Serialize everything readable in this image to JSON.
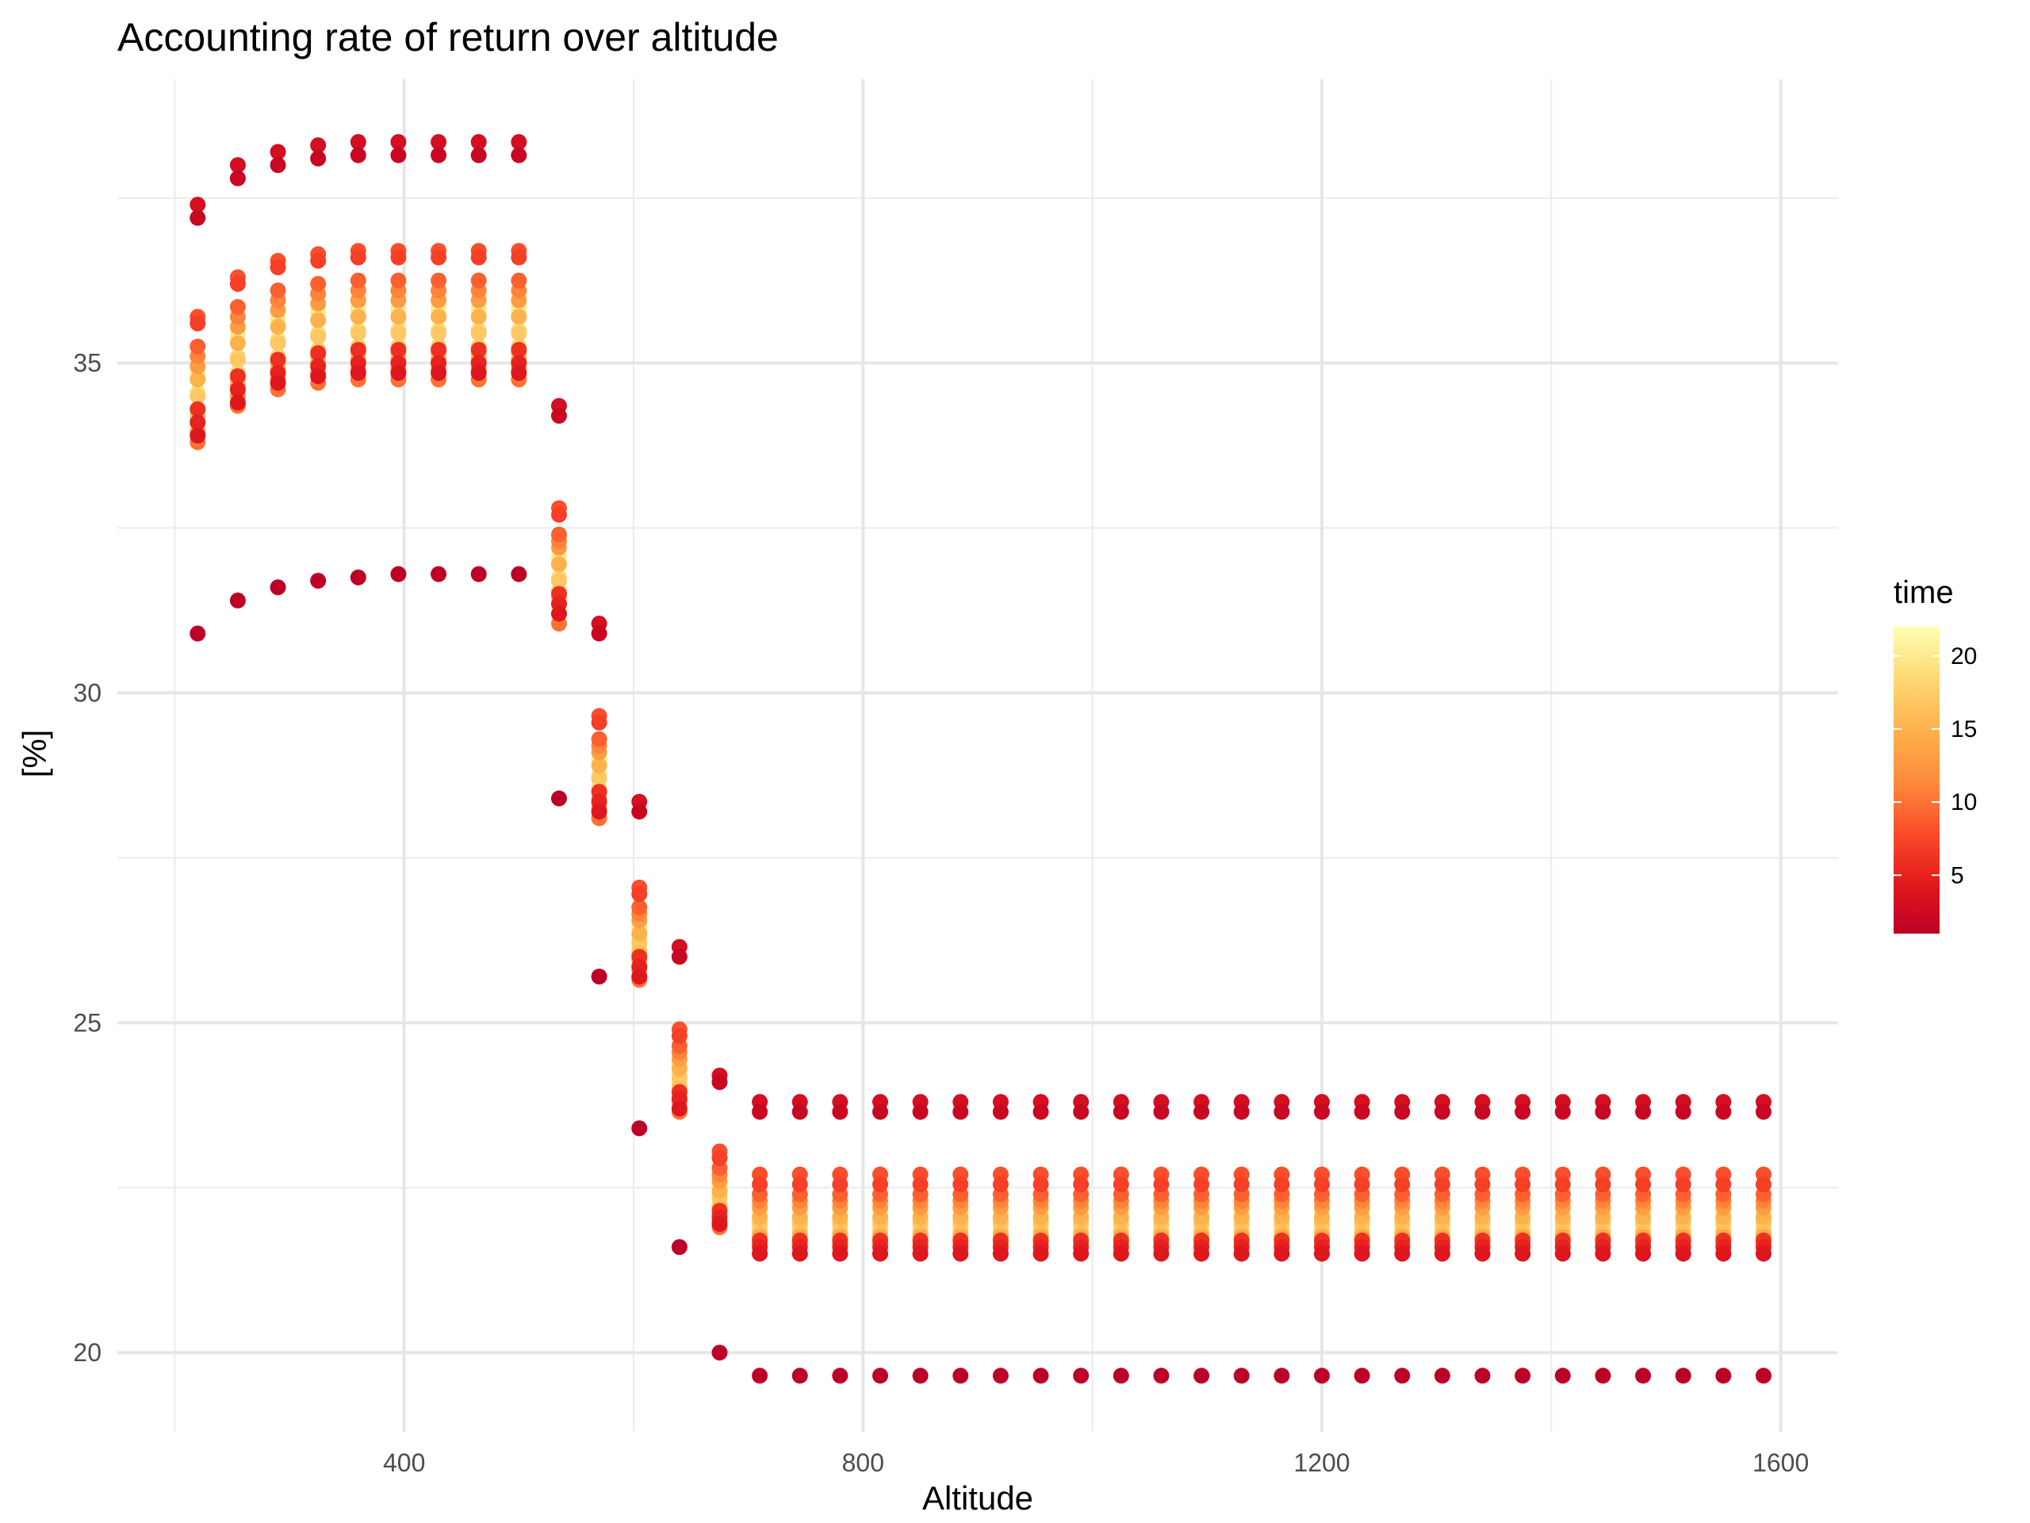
{
  "chart_data": {
    "type": "scatter",
    "title": "Accounting rate of return over altitude",
    "xlabel": "Altitude",
    "ylabel": "[%]",
    "xlim": [
      150,
      1650
    ],
    "ylim": [
      18.8,
      39.3
    ],
    "x_ticks": [
      400,
      800,
      1200,
      1600
    ],
    "x_tick_labels": [
      "400",
      "800",
      "1200",
      "1600"
    ],
    "y_ticks": [
      20,
      25,
      30,
      35
    ],
    "y_tick_labels": [
      "20",
      "25",
      "30",
      "35"
    ],
    "grid": true,
    "legend": {
      "title": "time",
      "placement": "right",
      "type": "colorbar",
      "range": [
        1,
        22
      ],
      "ticks": [
        5,
        10,
        15,
        20
      ],
      "tick_labels": [
        "5",
        "10",
        "15",
        "20"
      ],
      "colors": [
        "#bd0026",
        "#e31a1c",
        "#fc4e2a",
        "#fd8d3c",
        "#feb24c",
        "#fed976",
        "#ffffb2"
      ]
    },
    "color_by": "time",
    "altitudes": [
      220,
      255,
      290,
      325,
      360,
      395,
      430,
      465,
      500,
      535,
      570,
      605,
      640,
      675,
      710,
      745,
      780,
      815,
      850,
      885,
      920,
      955,
      990,
      1025,
      1060,
      1095,
      1130,
      1165,
      1200,
      1235,
      1270,
      1305,
      1340,
      1375,
      1410,
      1445,
      1480,
      1515,
      1550,
      1585
    ],
    "series_by_time": [
      {
        "time": 1,
        "values": [
          30.9,
          31.4,
          31.6,
          31.7,
          31.75,
          31.8,
          31.8,
          31.8,
          31.8,
          28.4,
          25.7,
          23.4,
          21.6,
          20.0,
          19.65,
          19.65,
          19.65,
          19.65,
          19.65,
          19.65,
          19.65,
          19.65,
          19.65,
          19.65,
          19.65,
          19.65,
          19.65,
          19.65,
          19.65,
          19.65,
          19.65,
          19.65,
          19.65,
          19.65,
          19.65,
          19.65,
          19.65,
          19.65,
          19.65,
          19.65
        ]
      },
      {
        "time": 2,
        "values": [
          37.2,
          37.8,
          38.0,
          38.1,
          38.15,
          38.15,
          38.15,
          38.15,
          38.15,
          34.2,
          30.9,
          28.2,
          26.0,
          24.1,
          23.65,
          23.65,
          23.65,
          23.65,
          23.65,
          23.65,
          23.65,
          23.65,
          23.65,
          23.65,
          23.65,
          23.65,
          23.65,
          23.65,
          23.65,
          23.65,
          23.65,
          23.65,
          23.65,
          23.65,
          23.65,
          23.65,
          23.65,
          23.65,
          23.65,
          23.65
        ]
      },
      {
        "time": 3,
        "values": [
          37.4,
          38.0,
          38.2,
          38.3,
          38.35,
          38.35,
          38.35,
          38.35,
          38.35,
          34.35,
          31.05,
          28.35,
          26.15,
          24.2,
          23.8,
          23.8,
          23.8,
          23.8,
          23.8,
          23.8,
          23.8,
          23.8,
          23.8,
          23.8,
          23.8,
          23.8,
          23.8,
          23.8,
          23.8,
          23.8,
          23.8,
          23.8,
          23.8,
          23.8,
          23.8,
          23.8,
          23.8,
          23.8,
          23.8,
          23.8
        ]
      },
      {
        "time": 4,
        "values": [
          33.9,
          34.4,
          34.7,
          34.8,
          34.85,
          34.85,
          34.85,
          34.85,
          34.85,
          31.2,
          28.2,
          25.7,
          23.7,
          21.95,
          21.5,
          21.5,
          21.5,
          21.5,
          21.5,
          21.5,
          21.5,
          21.5,
          21.5,
          21.5,
          21.5,
          21.5,
          21.5,
          21.5,
          21.5,
          21.5,
          21.5,
          21.5,
          21.5,
          21.5,
          21.5,
          21.5,
          21.5,
          21.5,
          21.5,
          21.5
        ]
      },
      {
        "time": 5,
        "values": [
          34.1,
          34.6,
          34.85,
          34.95,
          35.0,
          35.0,
          35.0,
          35.0,
          35.0,
          31.35,
          28.35,
          25.85,
          23.85,
          22.05,
          21.6,
          21.6,
          21.6,
          21.6,
          21.6,
          21.6,
          21.6,
          21.6,
          21.6,
          21.6,
          21.6,
          21.6,
          21.6,
          21.6,
          21.6,
          21.6,
          21.6,
          21.6,
          21.6,
          21.6,
          21.6,
          21.6,
          21.6,
          21.6,
          21.6,
          21.6
        ]
      },
      {
        "time": 6,
        "values": [
          34.3,
          34.8,
          35.05,
          35.15,
          35.2,
          35.2,
          35.2,
          35.2,
          35.2,
          31.5,
          28.5,
          26.0,
          23.95,
          22.15,
          21.7,
          21.7,
          21.7,
          21.7,
          21.7,
          21.7,
          21.7,
          21.7,
          21.7,
          21.7,
          21.7,
          21.7,
          21.7,
          21.7,
          21.7,
          21.7,
          21.7,
          21.7,
          21.7,
          21.7,
          21.7,
          21.7,
          21.7,
          21.7,
          21.7,
          21.7
        ]
      },
      {
        "time": 7,
        "values": [
          35.6,
          36.2,
          36.45,
          36.55,
          36.6,
          36.6,
          36.6,
          36.6,
          36.6,
          32.7,
          29.55,
          26.95,
          24.8,
          22.95,
          22.55,
          22.55,
          22.55,
          22.55,
          22.55,
          22.55,
          22.55,
          22.55,
          22.55,
          22.55,
          22.55,
          22.55,
          22.55,
          22.55,
          22.55,
          22.55,
          22.55,
          22.55,
          22.55,
          22.55,
          22.55,
          22.55,
          22.55,
          22.55,
          22.55,
          22.55
        ]
      },
      {
        "time": 8,
        "values": [
          35.7,
          36.3,
          36.55,
          36.65,
          36.7,
          36.7,
          36.7,
          36.7,
          36.7,
          32.8,
          29.65,
          27.05,
          24.9,
          23.05,
          22.7,
          22.7,
          22.7,
          22.7,
          22.7,
          22.7,
          22.7,
          22.7,
          22.7,
          22.7,
          22.7,
          22.7,
          22.7,
          22.7,
          22.7,
          22.7,
          22.7,
          22.7,
          22.7,
          22.7,
          22.7,
          22.7,
          22.7,
          22.7,
          22.7,
          22.7
        ]
      },
      {
        "time": 9,
        "values": [
          35.25,
          35.85,
          36.1,
          36.2,
          36.25,
          36.25,
          36.25,
          36.25,
          36.25,
          32.4,
          29.3,
          26.75,
          24.65,
          22.8,
          22.4,
          22.4,
          22.4,
          22.4,
          22.4,
          22.4,
          22.4,
          22.4,
          22.4,
          22.4,
          22.4,
          22.4,
          22.4,
          22.4,
          22.4,
          22.4,
          22.4,
          22.4,
          22.4,
          22.4,
          22.4,
          22.4,
          22.4,
          22.4,
          22.4,
          22.4
        ]
      },
      {
        "time": 10,
        "values": [
          33.8,
          34.35,
          34.6,
          34.7,
          34.75,
          34.75,
          34.75,
          34.75,
          34.75,
          31.05,
          28.1,
          25.65,
          23.65,
          21.9,
          21.5,
          21.5,
          21.5,
          21.5,
          21.5,
          21.5,
          21.5,
          21.5,
          21.5,
          21.5,
          21.5,
          21.5,
          21.5,
          21.5,
          21.5,
          21.5,
          21.5,
          21.5,
          21.5,
          21.5,
          21.5,
          21.5,
          21.5,
          21.5,
          21.5,
          21.5
        ]
      },
      {
        "time": 11,
        "values": [
          35.1,
          35.7,
          35.95,
          36.05,
          36.1,
          36.1,
          36.1,
          36.1,
          36.1,
          32.3,
          29.2,
          26.65,
          24.55,
          22.7,
          22.3,
          22.3,
          22.3,
          22.3,
          22.3,
          22.3,
          22.3,
          22.3,
          22.3,
          22.3,
          22.3,
          22.3,
          22.3,
          22.3,
          22.3,
          22.3,
          22.3,
          22.3,
          22.3,
          22.3,
          22.3,
          22.3,
          22.3,
          22.3,
          22.3,
          22.3
        ]
      },
      {
        "time": 12,
        "values": [
          33.95,
          34.5,
          34.75,
          34.85,
          34.9,
          34.9,
          34.9,
          34.9,
          34.9,
          31.2,
          28.25,
          25.8,
          23.8,
          22.0,
          21.65,
          21.65,
          21.65,
          21.65,
          21.65,
          21.65,
          21.65,
          21.65,
          21.65,
          21.65,
          21.65,
          21.65,
          21.65,
          21.65,
          21.65,
          21.65,
          21.65,
          21.65,
          21.65,
          21.65,
          21.65,
          21.65,
          21.65,
          21.65,
          21.65,
          21.65
        ]
      },
      {
        "time": 13,
        "values": [
          34.95,
          35.55,
          35.8,
          35.9,
          35.95,
          35.95,
          35.95,
          35.95,
          35.95,
          32.2,
          29.1,
          26.55,
          24.45,
          22.6,
          22.2,
          22.2,
          22.2,
          22.2,
          22.2,
          22.2,
          22.2,
          22.2,
          22.2,
          22.2,
          22.2,
          22.2,
          22.2,
          22.2,
          22.2,
          22.2,
          22.2,
          22.2,
          22.2,
          22.2,
          22.2,
          22.2,
          22.2,
          22.2,
          22.2,
          22.2
        ]
      },
      {
        "time": 14,
        "values": [
          34.1,
          34.65,
          34.9,
          35.0,
          35.05,
          35.05,
          35.05,
          35.05,
          35.05,
          31.35,
          28.4,
          25.95,
          23.95,
          22.1,
          21.75,
          21.75,
          21.75,
          21.75,
          21.75,
          21.75,
          21.75,
          21.75,
          21.75,
          21.75,
          21.75,
          21.75,
          21.75,
          21.75,
          21.75,
          21.75,
          21.75,
          21.75,
          21.75,
          21.75,
          21.75,
          21.75,
          21.75,
          21.75,
          21.75,
          21.75
        ]
      },
      {
        "time": 15,
        "values": [
          34.75,
          35.3,
          35.55,
          35.65,
          35.7,
          35.7,
          35.7,
          35.7,
          35.7,
          31.95,
          28.9,
          26.35,
          24.3,
          22.45,
          22.05,
          22.05,
          22.05,
          22.05,
          22.05,
          22.05,
          22.05,
          22.05,
          22.05,
          22.05,
          22.05,
          22.05,
          22.05,
          22.05,
          22.05,
          22.05,
          22.05,
          22.05,
          22.05,
          22.05,
          22.05,
          22.05,
          22.05,
          22.05,
          22.05,
          22.05
        ]
      },
      {
        "time": 16,
        "values": [
          34.2,
          34.75,
          35.0,
          35.1,
          35.15,
          35.15,
          35.15,
          35.15,
          35.15,
          31.45,
          28.5,
          26.05,
          24.0,
          22.2,
          21.8,
          21.8,
          21.8,
          21.8,
          21.8,
          21.8,
          21.8,
          21.8,
          21.8,
          21.8,
          21.8,
          21.8,
          21.8,
          21.8,
          21.8,
          21.8,
          21.8,
          21.8,
          21.8,
          21.8,
          21.8,
          21.8,
          21.8,
          21.8,
          21.8,
          21.8
        ]
      },
      {
        "time": 17,
        "values": [
          34.5,
          35.05,
          35.3,
          35.4,
          35.45,
          35.45,
          35.45,
          35.45,
          35.45,
          31.7,
          28.7,
          26.2,
          24.15,
          22.35,
          21.95,
          21.95,
          21.95,
          21.95,
          21.95,
          21.95,
          21.95,
          21.95,
          21.95,
          21.95,
          21.95,
          21.95,
          21.95,
          21.95,
          21.95,
          21.95,
          21.95,
          21.95,
          21.95,
          21.95,
          21.95,
          21.95,
          21.95,
          21.95,
          21.95,
          21.95
        ]
      },
      {
        "time": 18,
        "values": [
          34.3,
          34.85,
          35.1,
          35.2,
          35.25,
          35.25,
          35.25,
          35.25,
          35.25,
          31.55,
          28.55,
          26.1,
          24.05,
          22.25,
          21.85,
          21.85,
          21.85,
          21.85,
          21.85,
          21.85,
          21.85,
          21.85,
          21.85,
          21.85,
          21.85,
          21.85,
          21.85,
          21.85,
          21.85,
          21.85,
          21.85,
          21.85,
          21.85,
          21.85,
          21.85,
          21.85,
          21.85,
          21.85,
          21.85,
          21.85
        ]
      },
      {
        "time": 19,
        "values": [
          34.55,
          35.1,
          35.35,
          35.45,
          35.5,
          35.5,
          35.5,
          35.5,
          35.5,
          31.75,
          28.75,
          26.25,
          24.2,
          22.4,
          22.0,
          22.0,
          22.0,
          22.0,
          22.0,
          22.0,
          22.0,
          22.0,
          22.0,
          22.0,
          22.0,
          22.0,
          22.0,
          22.0,
          22.0,
          22.0,
          22.0,
          22.0,
          22.0,
          22.0,
          22.0,
          22.0,
          22.0,
          22.0,
          22.0,
          22.0
        ]
      },
      {
        "time": 20,
        "values": [
          34.85,
          35.4,
          35.65,
          35.75,
          35.8,
          35.8,
          35.8,
          35.8,
          35.8,
          32.05,
          29.0,
          26.45,
          24.35,
          22.5,
          22.1,
          22.1,
          22.1,
          22.1,
          22.1,
          22.1,
          22.1,
          22.1,
          22.1,
          22.1,
          22.1,
          22.1,
          22.1,
          22.1,
          22.1,
          22.1,
          22.1,
          22.1,
          22.1,
          22.1,
          22.1,
          22.1,
          22.1,
          22.1,
          22.1,
          22.1
        ]
      },
      {
        "time": 21,
        "values": [
          34.8,
          35.45,
          35.7,
          35.8,
          35.85,
          35.85,
          35.85,
          35.85,
          35.85,
          32.0,
          28.95,
          26.5,
          24.4,
          22.55,
          22.15,
          22.15,
          22.15,
          22.15,
          22.15,
          22.15,
          22.15,
          22.15,
          22.15,
          22.15,
          22.15,
          22.15,
          22.15,
          22.15,
          22.15,
          22.15,
          22.15,
          22.15,
          22.15,
          22.15,
          22.15,
          22.15,
          22.15,
          22.15,
          22.15,
          22.15
        ]
      }
    ]
  }
}
